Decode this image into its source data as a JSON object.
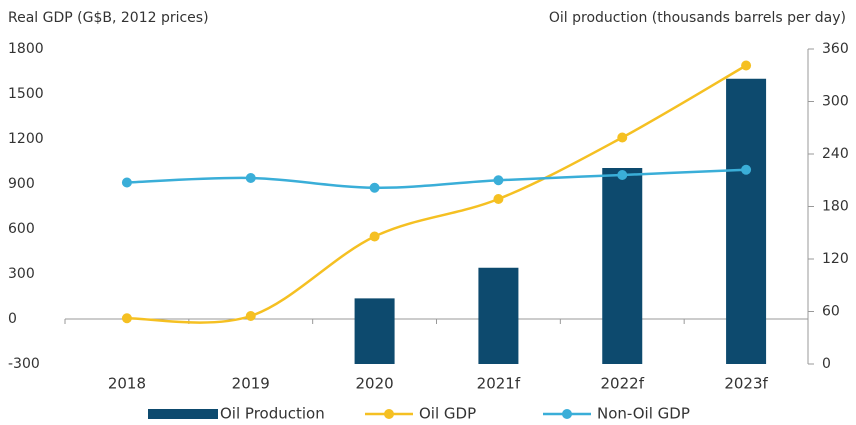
{
  "chart_data": {
    "type": "bar-line",
    "y_label": "Real GDP (G$B, 2012 prices)",
    "y2_label": "Oil production (thousands barrels per day)",
    "categories": [
      "2018",
      "2019",
      "2020",
      "2021f",
      "2022f",
      "2023f"
    ],
    "ylim": [
      -300,
      1800
    ],
    "yticks": [
      -300,
      0,
      300,
      600,
      900,
      1200,
      1500,
      1800
    ],
    "y2lim": [
      0,
      360
    ],
    "y2ticks": [
      0,
      60,
      120,
      180,
      240,
      300,
      360
    ],
    "series": [
      {
        "name": "Oil Production",
        "type": "bar",
        "axis": "y2",
        "color": "#0d4a6e",
        "values": [
          null,
          null,
          75,
          110,
          224,
          326
        ]
      },
      {
        "name": "Oil GDP",
        "type": "line",
        "color": "#f5c022",
        "values": [
          5,
          20,
          550,
          800,
          1210,
          1690
        ]
      },
      {
        "name": "Non-Oil GDP",
        "type": "line",
        "color": "#3aaed8",
        "values": [
          910,
          940,
          875,
          925,
          960,
          995
        ]
      }
    ]
  }
}
